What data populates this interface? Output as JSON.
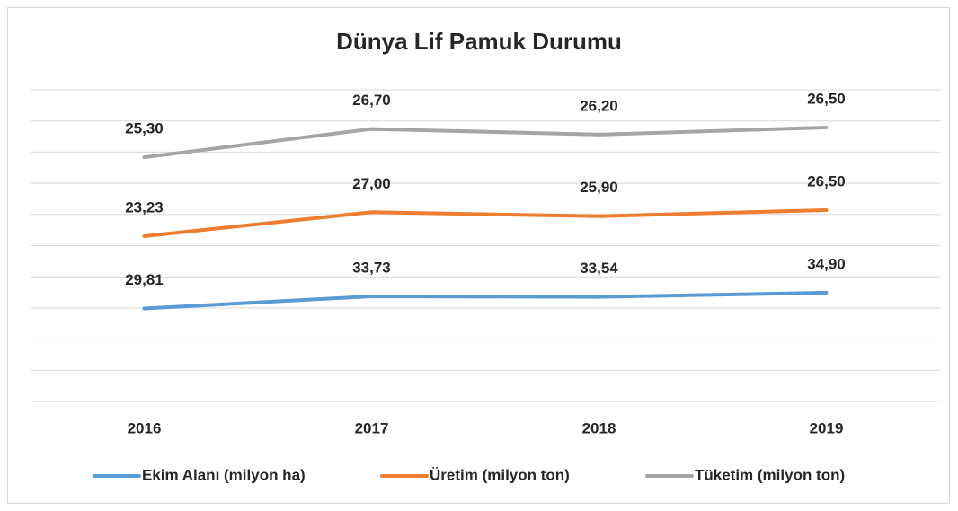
{
  "chart_data": {
    "type": "line",
    "stacked": true,
    "title": "Dünya Lif Pamuk Durumu",
    "categories": [
      "2016",
      "2017",
      "2018",
      "2019"
    ],
    "series": [
      {
        "name": "Ekim Alanı (milyon ha)",
        "color": "#5b9bd5",
        "values": [
          29.81,
          33.73,
          33.54,
          34.9
        ],
        "value_labels": [
          "29,81",
          "33,73",
          "33,54",
          "34,90"
        ]
      },
      {
        "name": "Üretim (milyon ton)",
        "color": "#ed7d31",
        "values": [
          23.23,
          27.0,
          25.9,
          26.5
        ],
        "value_labels": [
          "23,23",
          "27,00",
          "25,90",
          "26,50"
        ]
      },
      {
        "name": "Tüketim (milyon ton)",
        "color": "#a5a5a5",
        "values": [
          25.3,
          26.7,
          26.2,
          26.5
        ],
        "value_labels": [
          "25,30",
          "26,70",
          "26,20",
          "26,50"
        ]
      }
    ],
    "ylim": [
      0,
      100
    ],
    "yticks": [
      0,
      10,
      20,
      30,
      40,
      50,
      60,
      70,
      80,
      90,
      100
    ],
    "grid": true,
    "legend": "bottom"
  }
}
